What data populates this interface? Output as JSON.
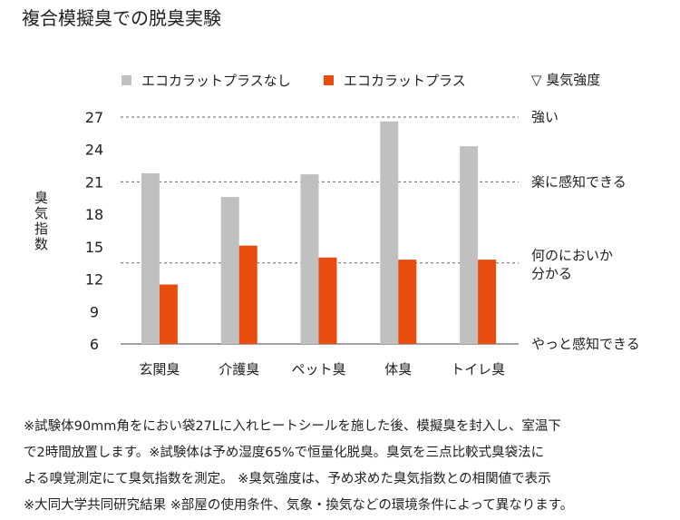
{
  "title": "複合模擬臭での脱臭実験",
  "chart_data": {
    "type": "bar",
    "ylabel": "臭気指数",
    "ylim": [
      6,
      27
    ],
    "yticks": [
      6,
      9,
      12,
      15,
      18,
      21,
      24,
      27
    ],
    "categories": [
      "玄関臭",
      "介護臭",
      "ペット臭",
      "体臭",
      "トイレ臭"
    ],
    "series": [
      {
        "name": "エコカラットプラスなし",
        "color": "#c0c0c0",
        "values": [
          21.8,
          19.6,
          21.7,
          26.6,
          24.3
        ]
      },
      {
        "name": "エコカラットプラス",
        "color": "#e84d0e",
        "values": [
          11.5,
          15.1,
          14.0,
          13.8,
          13.8
        ]
      }
    ],
    "legend_position": "top",
    "grid": false,
    "intensity": {
      "label": "▽ 臭気強度",
      "levels": [
        {
          "label": "強い",
          "value": 27
        },
        {
          "label": "楽に感知できる",
          "value": 21
        },
        {
          "label": "何のにおいか\n分かる",
          "value": 13.5
        },
        {
          "label": "やっと感知できる",
          "value": 6
        }
      ]
    }
  },
  "notes": [
    "※試験体90mm角をにおい袋27Lに入れヒートシールを施した後、模擬臭を封入し、室温下",
    "で2時間放置します。※試験体は予め湿度65%で恒量化脱臭。臭気を三点比較式臭袋法に",
    "よる嗅覚測定にて臭気指数を測定。 ※臭気強度は、予め求めた臭気指数との相関値で表示",
    "※大同大学共同研究結果 ※部屋の使用条件、気象・換気などの環境条件によって異なります。"
  ]
}
